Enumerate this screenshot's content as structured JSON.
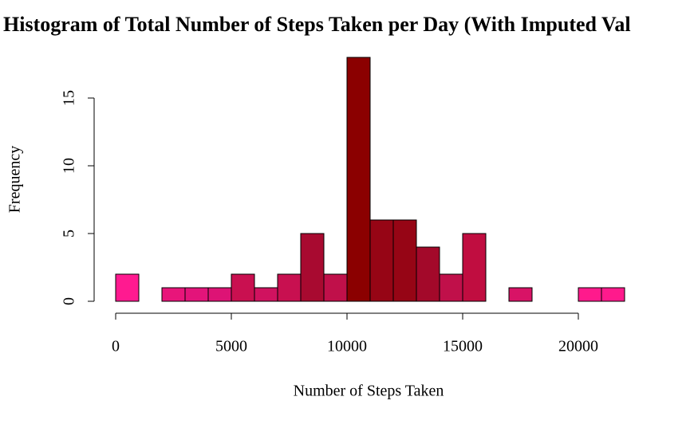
{
  "chart_data": {
    "type": "histogram",
    "title": "Histogram of Total Number of Steps Taken per Day (With Imputed Val",
    "xlabel": "Number of Steps Taken",
    "ylabel": "Frequency",
    "bins": [
      0,
      1000,
      2000,
      3000,
      4000,
      5000,
      6000,
      7000,
      8000,
      9000,
      10000,
      11000,
      12000,
      13000,
      14000,
      15000,
      16000,
      17000,
      18000,
      19000,
      20000,
      21000,
      22000
    ],
    "values": [
      2,
      0,
      1,
      1,
      1,
      2,
      1,
      2,
      5,
      2,
      18,
      6,
      6,
      4,
      2,
      5,
      0,
      1,
      0,
      0,
      1,
      1
    ],
    "colors": [
      "#ff1a90",
      "#f5187f",
      "#e8157a",
      "#e3147a",
      "#dd1375",
      "#c91050",
      "#d0125f",
      "#c81050",
      "#a80a30",
      "#c0104a",
      "#8b0000",
      "#960515",
      "#960515",
      "#a3092a",
      "#c0104a",
      "#c00d40",
      "#e01470",
      "#d81366",
      "#f0157f",
      "#f0157f",
      "#ff1a8c",
      "#ff1a8c"
    ],
    "xlim": [
      0,
      22000
    ],
    "ylim": [
      0,
      18
    ],
    "xticks": [
      0,
      5000,
      10000,
      15000,
      20000
    ],
    "yticks": [
      0,
      5,
      10,
      15
    ]
  }
}
